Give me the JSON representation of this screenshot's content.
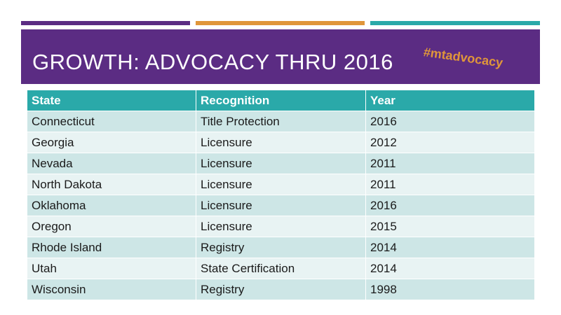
{
  "slide": {
    "title": "GROWTH: ADVOCACY THRU 2016",
    "hashtag": "#mtadvocacy"
  },
  "colors": {
    "purple": "#5b2c83",
    "orange": "#e0963a",
    "teal": "#2aa9a9",
    "row_dark": "#cde6e6",
    "row_light": "#e8f3f3"
  },
  "table": {
    "headers": [
      "State",
      "Recognition",
      "Year"
    ],
    "rows": [
      [
        "Connecticut",
        "Title Protection",
        "2016"
      ],
      [
        "Georgia",
        "Licensure",
        "2012"
      ],
      [
        "Nevada",
        "Licensure",
        "2011"
      ],
      [
        "North Dakota",
        "Licensure",
        "2011"
      ],
      [
        "Oklahoma",
        "Licensure",
        "2016"
      ],
      [
        "Oregon",
        "Licensure",
        "2015"
      ],
      [
        "Rhode Island",
        "Registry",
        "2014"
      ],
      [
        "Utah",
        "State Certification",
        "2014"
      ],
      [
        "Wisconsin",
        "Registry",
        "1998"
      ]
    ]
  }
}
